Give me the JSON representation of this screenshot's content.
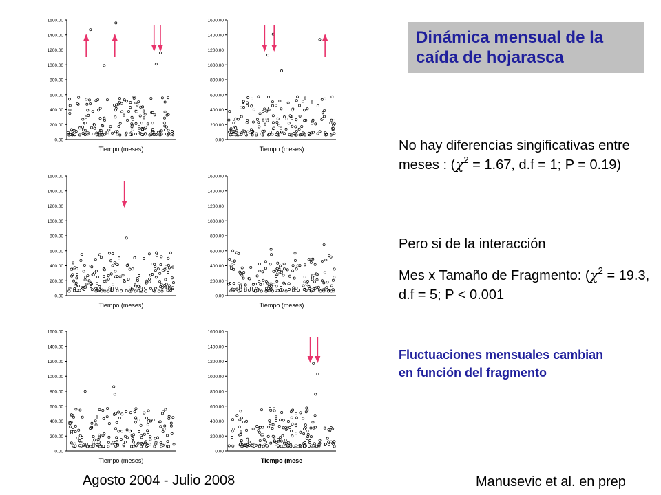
{
  "title": "Dinámica mensual de la caída de hojarasca",
  "stats": {
    "p1": {
      "pre": "No hay diferencias singificativas entre meses : (",
      "chi": "χ",
      "sup": "2",
      "post": " = 1.67, d.f = 1; P = 0.19)"
    },
    "p2": "Pero si de la interacción",
    "p3": {
      "pre": "Mes x Tamaño de Fragmento: (",
      "chi": "χ",
      "sup": "2",
      "post": " = 19.3, d.f = 5; P < 0.001"
    }
  },
  "conclusion": "Fluctuaciones mensuales cambian en función del fragmento",
  "footer": {
    "period": "Agosto 2004 - Julio 2008",
    "citation": "Manusevic et al. en prep"
  },
  "colors": {
    "arrow": "#e8336b",
    "title_text": "#1f1f9c",
    "title_bg": "#c0c0c0",
    "conclusion_text": "#1f1f9c"
  },
  "chart_data": [
    {
      "type": "scatter",
      "xlabel": "Tiempo (meses)",
      "ylim": [
        0,
        1600
      ],
      "yticks": [
        "0.00",
        "200.00",
        "400.00",
        "600.00",
        "800.00",
        "1000.00",
        "1200.00",
        "1400.00",
        "1600.00"
      ],
      "outliers": [
        {
          "x": 0.21,
          "y": 1470
        },
        {
          "x": 0.45,
          "y": 1560
        },
        {
          "x": 0.87,
          "y": 1160
        },
        {
          "x": 0.83,
          "y": 1010
        },
        {
          "x": 0.34,
          "y": 990
        }
      ],
      "arrows": [
        {
          "x": 0.17,
          "dir": "up"
        },
        {
          "x": 0.44,
          "dir": "up"
        },
        {
          "x": 0.81,
          "dir": "down"
        },
        {
          "x": 0.87,
          "dir": "down"
        }
      ]
    },
    {
      "type": "scatter",
      "xlabel": "Tiempo (meses)",
      "ylim": [
        0,
        1600
      ],
      "yticks": [
        "0.00",
        "200.00",
        "400.00",
        "600.00",
        "800.00",
        "1000.00",
        "1200.00",
        "1400.00",
        "1600.00"
      ],
      "outliers": [
        {
          "x": 0.42,
          "y": 1410
        },
        {
          "x": 0.37,
          "y": 1130
        },
        {
          "x": 0.86,
          "y": 1340
        },
        {
          "x": 0.5,
          "y": 920
        }
      ],
      "arrows": [
        {
          "x": 0.34,
          "dir": "down"
        },
        {
          "x": 0.43,
          "dir": "down"
        },
        {
          "x": 0.91,
          "dir": "up"
        }
      ]
    },
    {
      "type": "scatter",
      "xlabel": "Tiempo (meses)",
      "ylim": [
        0,
        1600
      ],
      "yticks": [
        "0.00",
        "200.00",
        "400.00",
        "600.00",
        "800.00",
        "1000.00",
        "1200.00",
        "1400.00",
        "1600.00"
      ],
      "outliers": [
        {
          "x": 0.55,
          "y": 770
        },
        {
          "x": 0.42,
          "y": 560
        }
      ],
      "arrows": [
        {
          "x": 0.53,
          "dir": "down"
        }
      ]
    },
    {
      "type": "scatter",
      "xlabel": "Tiempo (meses)",
      "ylim": [
        0,
        1600
      ],
      "yticks": [
        "0.00",
        "200.00",
        "400.00",
        "600.00",
        "800.00",
        "1000.00",
        "1200.00",
        "1400.00",
        "1600.00"
      ],
      "outliers": [
        {
          "x": 0.9,
          "y": 680
        },
        {
          "x": 0.04,
          "y": 600
        },
        {
          "x": 0.4,
          "y": 620
        }
      ],
      "arrows": []
    },
    {
      "type": "scatter",
      "xlabel": "Tiempo (meses)",
      "ylim": [
        0,
        1600
      ],
      "yticks": [
        "0.00",
        "200.00",
        "400.00",
        "600.00",
        "800.00",
        "1000.00",
        "1200.00",
        "1400.00",
        "1600.00"
      ],
      "outliers": [
        {
          "x": 0.16,
          "y": 800
        },
        {
          "x": 0.43,
          "y": 860
        },
        {
          "x": 0.44,
          "y": 760
        }
      ],
      "arrows": []
    },
    {
      "type": "scatter",
      "xlabel": "Tiempo (mese",
      "ylim": [
        0,
        1600
      ],
      "yticks": [
        "0.00",
        "200.00",
        "400.00",
        "600.00",
        "800.00",
        "1000.00",
        "1200.00",
        "1400.00",
        "1600.00"
      ],
      "outliers": [
        {
          "x": 0.8,
          "y": 1170
        },
        {
          "x": 0.84,
          "y": 1030
        },
        {
          "x": 0.82,
          "y": 760
        }
      ],
      "arrows": [
        {
          "x": 0.77,
          "dir": "down"
        },
        {
          "x": 0.84,
          "dir": "down"
        }
      ]
    }
  ]
}
